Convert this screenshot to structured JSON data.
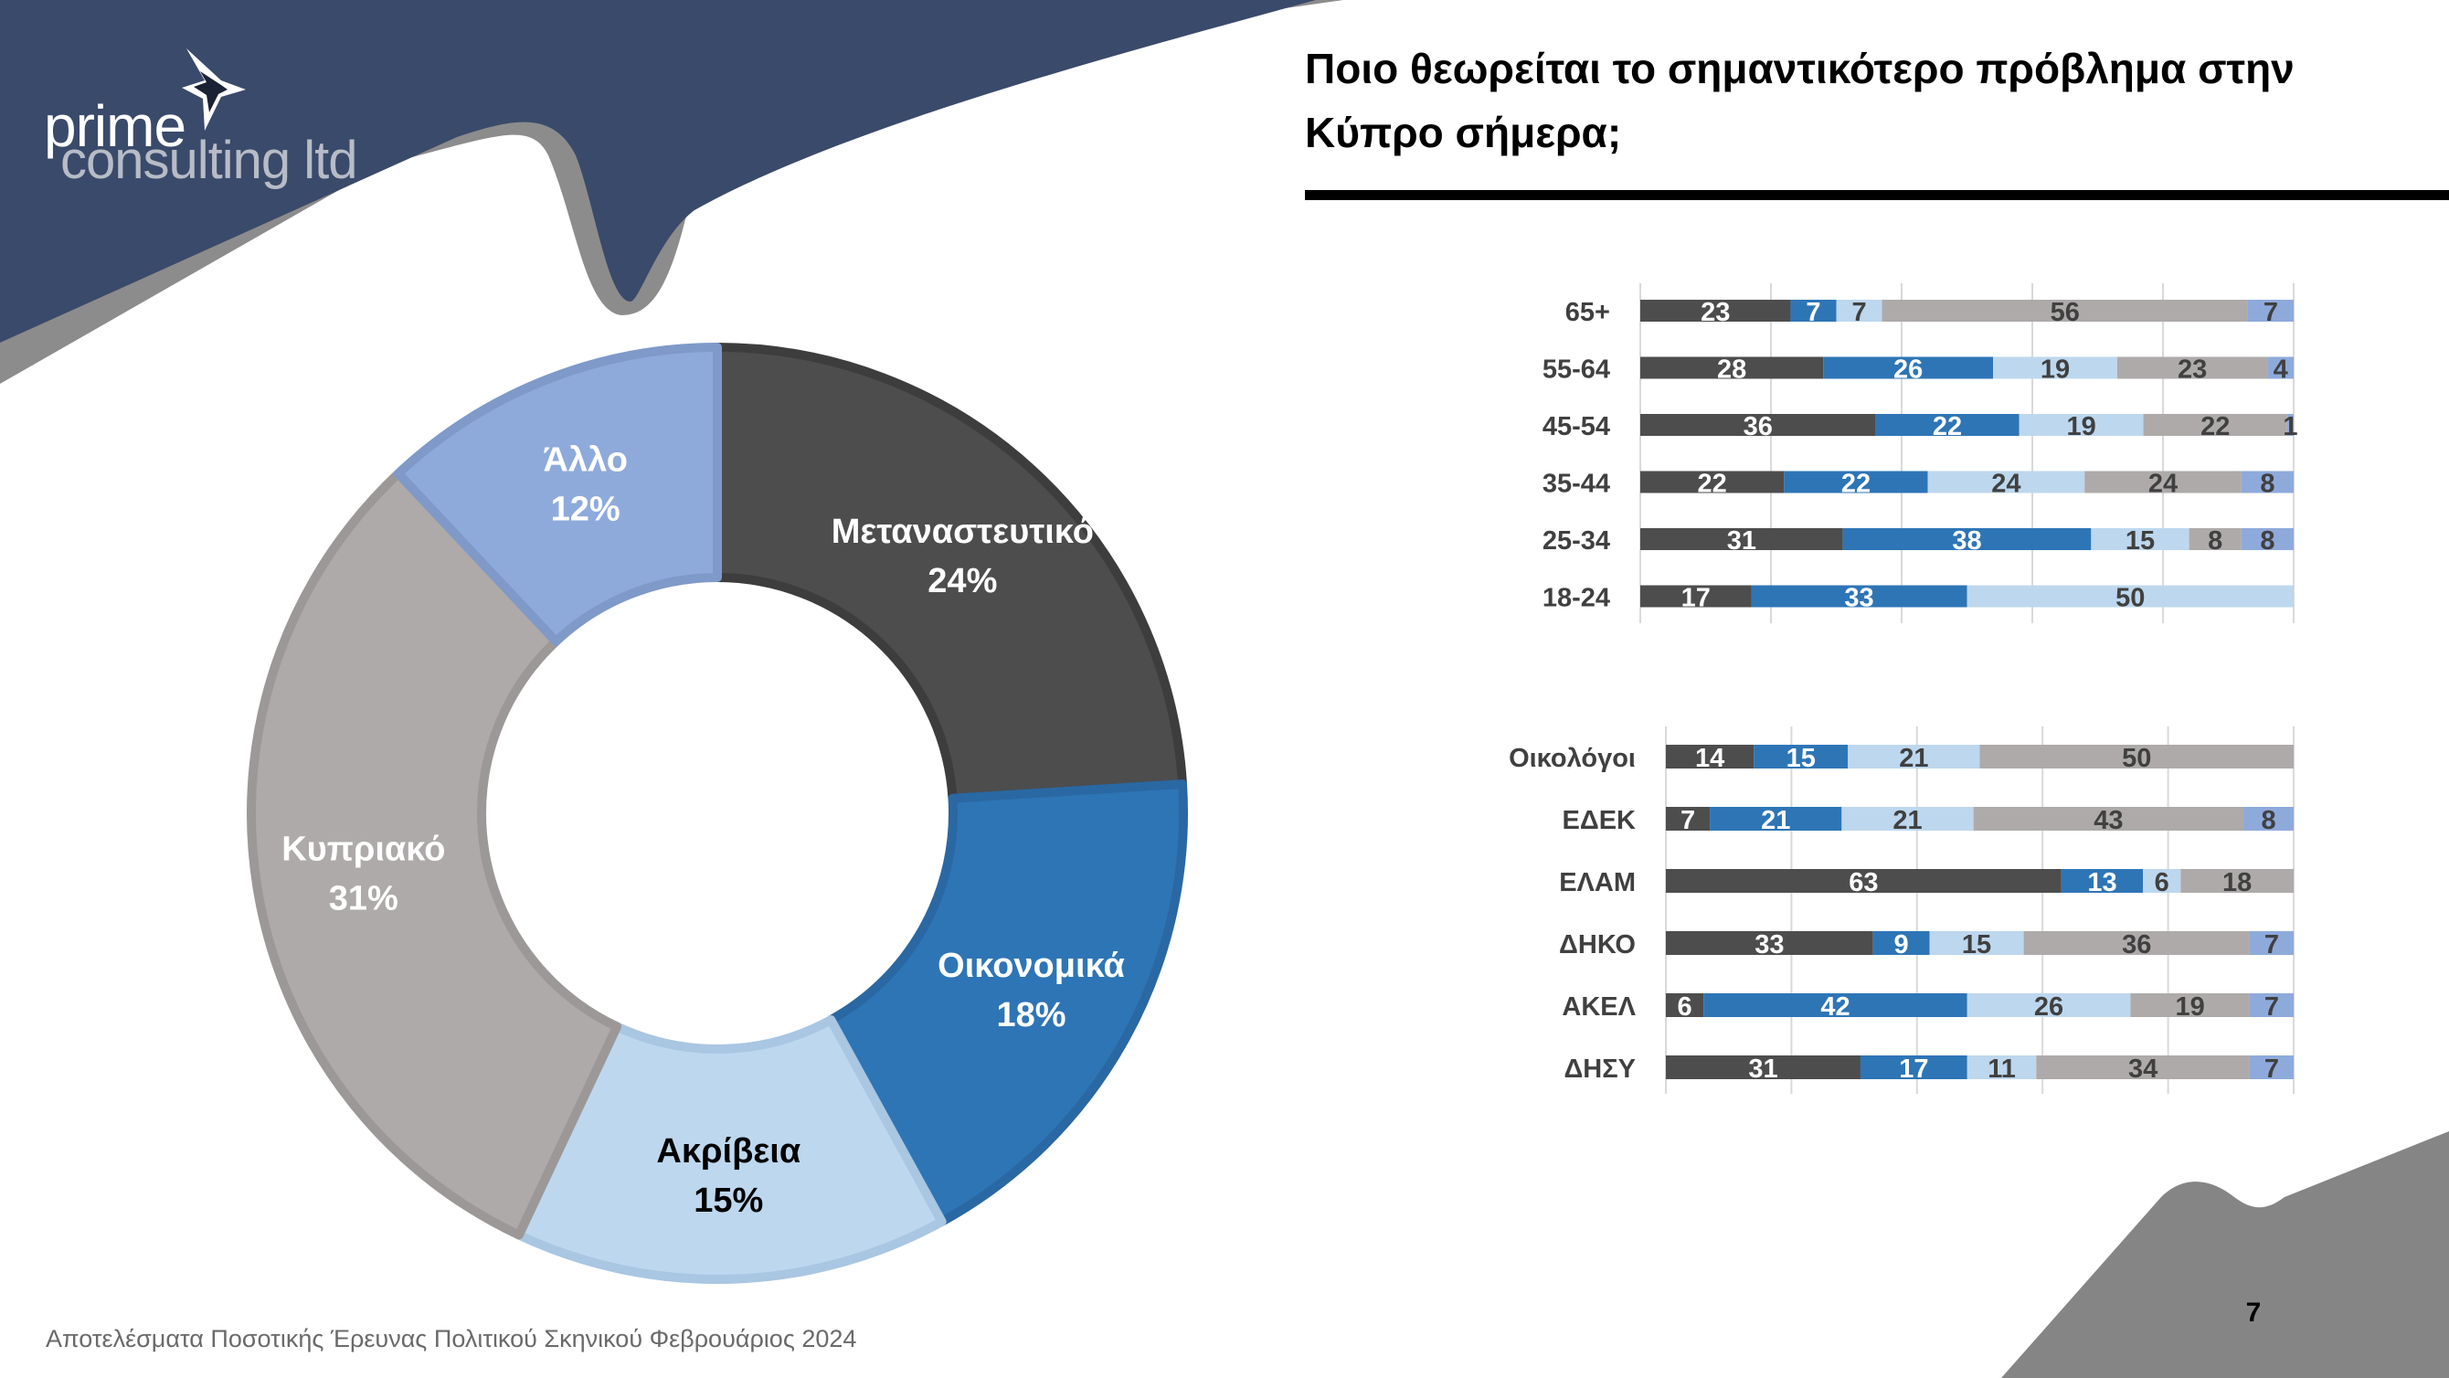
{
  "brand": {
    "word1": "prime",
    "word2": "consulting ltd"
  },
  "title": "Ποιο θεωρείται το σημαντικότερο πρόβλημα στην Κύπρο σήμερα;",
  "footer": "Αποτελέσματα Ποσοτικής Έρευνας Πολιτικού Σκηνικού Φεβρουάριος 2024",
  "page_number": "7",
  "colors": {
    "navy": "#3a4a6b",
    "gray_band": "#8c8c8c",
    "corner_gray": "#858585",
    "series": [
      "#4d4d4d",
      "#2e75b6",
      "#bdd7ee",
      "#aeaaaa",
      "#8eaadb"
    ]
  },
  "chart_data": [
    {
      "type": "pie",
      "subtype": "donut",
      "categories": [
        "Μεταναστευτικό",
        "Οικονομικά",
        "Ακρίβεια",
        "Κυπριακό",
        "Άλλο"
      ],
      "values": [
        24,
        18,
        15,
        31,
        12
      ],
      "labels": [
        "24%",
        "18%",
        "15%",
        "31%",
        "12%"
      ],
      "colors": [
        "#4d4d4d",
        "#2e75b6",
        "#bdd7ee",
        "#aeaaaa",
        "#8eaadb"
      ]
    },
    {
      "type": "bar",
      "orientation": "horizontal",
      "stacked": "100%",
      "categories": [
        "65+",
        "55-64",
        "45-54",
        "35-44",
        "25-34",
        "18-24"
      ],
      "series": [
        {
          "values": [
            23,
            28,
            36,
            22,
            31,
            17
          ]
        },
        {
          "values": [
            7,
            26,
            22,
            22,
            38,
            33
          ]
        },
        {
          "values": [
            7,
            19,
            19,
            24,
            15,
            50
          ]
        },
        {
          "values": [
            56,
            23,
            22,
            24,
            8,
            0
          ]
        },
        {
          "values": [
            7,
            4,
            1,
            8,
            8,
            0
          ]
        }
      ],
      "xlim": [
        0,
        100
      ],
      "grid": true
    },
    {
      "type": "bar",
      "orientation": "horizontal",
      "stacked": "100%",
      "categories": [
        "Οικολόγοι",
        "ΕΔΕΚ",
        "ΕΛΑΜ",
        "ΔΗΚΟ",
        "ΑΚΕΛ",
        "ΔΗΣΥ"
      ],
      "series": [
        {
          "values": [
            14,
            7,
            63,
            33,
            6,
            31
          ]
        },
        {
          "values": [
            15,
            21,
            13,
            9,
            42,
            17
          ]
        },
        {
          "values": [
            21,
            21,
            6,
            15,
            26,
            11
          ]
        },
        {
          "values": [
            50,
            43,
            18,
            36,
            19,
            34
          ]
        },
        {
          "values": [
            0,
            8,
            0,
            7,
            7,
            7
          ]
        }
      ],
      "xlim": [
        0,
        100
      ],
      "grid": true
    }
  ]
}
